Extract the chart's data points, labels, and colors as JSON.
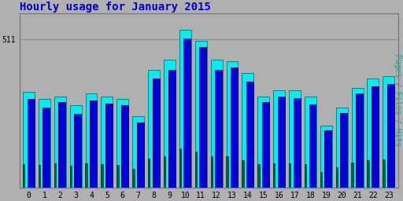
{
  "title": "Hourly usage for January 2015",
  "title_color": "#0000cc",
  "title_fontsize": 10,
  "background_color": "#b0b0b0",
  "plot_bg_color": "#b0b0b0",
  "ylabel_text": "Pages / Files / Hits",
  "ylabel_color": "#00aaaa",
  "xlabel_labels": [
    "0",
    "1",
    "2",
    "3",
    "4",
    "5",
    "6",
    "7",
    "8",
    "9",
    "10",
    "11",
    "12",
    "13",
    "14",
    "15",
    "16",
    "17",
    "18",
    "19",
    "20",
    "21",
    "22",
    "23"
  ],
  "ytick_label": "511",
  "hours": [
    0,
    1,
    2,
    3,
    4,
    5,
    6,
    7,
    8,
    9,
    10,
    11,
    12,
    13,
    14,
    15,
    16,
    17,
    18,
    19,
    20,
    21,
    22,
    23
  ],
  "hits": [
    330,
    305,
    315,
    285,
    325,
    315,
    305,
    245,
    405,
    440,
    545,
    505,
    440,
    435,
    395,
    315,
    335,
    335,
    315,
    215,
    275,
    345,
    375,
    385
  ],
  "files": [
    305,
    275,
    295,
    255,
    300,
    290,
    285,
    225,
    375,
    405,
    515,
    485,
    405,
    415,
    365,
    295,
    315,
    308,
    288,
    198,
    258,
    325,
    348,
    358
  ],
  "pages": [
    82,
    78,
    83,
    76,
    85,
    80,
    78,
    65,
    100,
    108,
    135,
    125,
    108,
    108,
    96,
    80,
    85,
    84,
    80,
    55,
    70,
    88,
    95,
    98
  ],
  "bar_colors": {
    "hits": "#00eeee",
    "files": "#0000dd",
    "pages": "#006644"
  },
  "edge_colors": {
    "hits": "#008888",
    "files": "#000066",
    "pages": "#003322"
  },
  "hline_y": 511,
  "ylim": [
    0,
    600
  ],
  "yticks": [
    511
  ],
  "font_family": "monospace"
}
